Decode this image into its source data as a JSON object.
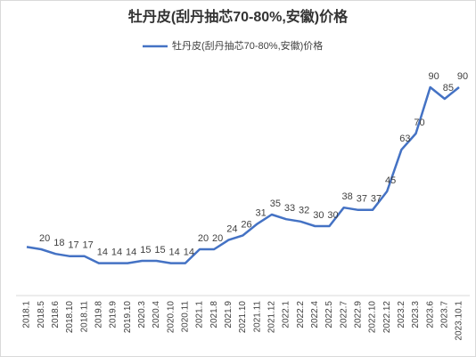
{
  "chart_data": {
    "type": "line",
    "title": "牡丹皮(刮丹抽芯70-80%,安徽)价格",
    "categories": [
      "2018.1",
      "2018.5",
      "2018.6",
      "2018.10",
      "2018.11",
      "2019.8",
      "2019.9",
      "2019.10",
      "2020.3",
      "2020.4",
      "2020.10",
      "2020.11",
      "2021.1",
      "2021.8",
      "2021.9",
      "2021.10",
      "2021.11",
      "2021.12",
      "2022.1",
      "2022.2",
      "2022.4",
      "2022.5",
      "2022.7",
      "2022.9",
      "2022.10",
      "2022.12",
      "2023.2",
      "2023.3",
      "2023.6",
      "2023.7",
      "2023.10.1"
    ],
    "series": [
      {
        "name": "牡丹皮(刮丹抽芯70-80%,安徽)价格",
        "color": "#4472c4",
        "values": [
          21,
          20,
          18,
          17,
          17,
          14,
          14,
          14,
          15,
          15,
          14,
          14,
          20,
          20,
          24,
          26,
          31,
          35,
          33,
          32,
          30,
          30,
          38,
          37,
          37,
          45,
          63,
          70,
          90,
          85,
          90
        ],
        "value_labels": [
          null,
          "20",
          "18",
          "17",
          "17",
          "14",
          "14",
          "14",
          "15",
          "15",
          "14",
          "14",
          "20",
          "20",
          "24",
          "26",
          "31",
          "35",
          "33",
          "32",
          "30",
          "30",
          "38",
          "37",
          "37",
          "45",
          "63",
          "70",
          "90",
          "85",
          "90"
        ]
      }
    ],
    "ylim": [
      0,
      100
    ],
    "legend": "top"
  }
}
